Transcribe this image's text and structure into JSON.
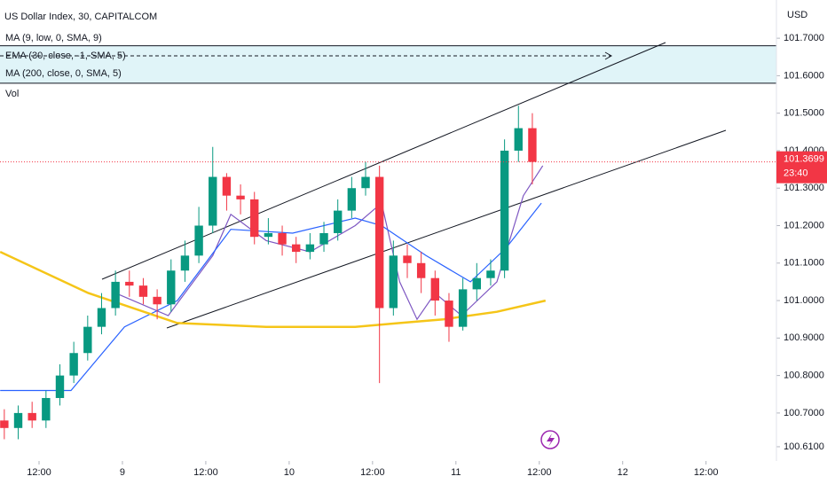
{
  "chart_data": {
    "type": "candlestick",
    "title": "US Dollar Index, 30, CAPITALCOM",
    "currency": "USD",
    "volume_label": "Vol",
    "up_color": "#089981",
    "down_color": "#f23645",
    "x": [
      7,
      9,
      11,
      13,
      15,
      17,
      19,
      21,
      23,
      25,
      27,
      29,
      31,
      33,
      35,
      37,
      39,
      41,
      43,
      45,
      47,
      49,
      51,
      53,
      55,
      57,
      59,
      61,
      63,
      65,
      67,
      69,
      71,
      73,
      75,
      77,
      79,
      81,
      83
    ],
    "open": [
      100.68,
      100.66,
      100.7,
      100.68,
      100.74,
      100.8,
      100.86,
      100.93,
      100.98,
      101.05,
      101.04,
      101.01,
      100.99,
      101.08,
      101.12,
      101.2,
      101.33,
      101.28,
      101.27,
      101.17,
      101.18,
      101.15,
      101.13,
      101.15,
      101.18,
      101.24,
      101.3,
      101.33,
      100.98,
      101.12,
      101.1,
      101.06,
      101.0,
      100.93,
      101.03,
      101.06,
      101.08,
      101.4,
      101.46
    ],
    "high": [
      100.71,
      100.72,
      100.73,
      100.76,
      100.83,
      100.89,
      100.96,
      101.02,
      101.08,
      101.08,
      101.06,
      101.03,
      101.11,
      101.16,
      101.25,
      101.41,
      101.34,
      101.31,
      101.29,
      101.22,
      101.2,
      101.17,
      101.18,
      101.21,
      101.27,
      101.33,
      101.37,
      101.36,
      101.16,
      101.15,
      101.13,
      101.08,
      101.02,
      101.06,
      101.1,
      101.11,
      101.43,
      101.52,
      101.5
    ],
    "low": [
      100.63,
      100.63,
      100.66,
      100.66,
      100.72,
      100.78,
      100.84,
      100.91,
      100.96,
      101.01,
      100.99,
      100.95,
      100.97,
      101.05,
      101.1,
      101.18,
      101.24,
      101.23,
      101.15,
      101.15,
      101.12,
      101.1,
      101.11,
      101.13,
      101.16,
      101.22,
      101.28,
      100.78,
      100.96,
      101.06,
      101.02,
      100.96,
      100.89,
      100.92,
      101.0,
      101.04,
      101.06,
      101.37,
      101.31
    ],
    "close": [
      100.66,
      100.7,
      100.68,
      100.74,
      100.8,
      100.86,
      100.93,
      100.98,
      101.05,
      101.04,
      101.01,
      100.99,
      101.08,
      101.12,
      101.2,
      101.33,
      101.28,
      101.27,
      101.17,
      101.18,
      101.15,
      101.13,
      101.15,
      101.18,
      101.24,
      101.3,
      101.33,
      100.98,
      101.12,
      101.1,
      101.06,
      101.0,
      100.93,
      101.03,
      101.06,
      101.08,
      101.4,
      101.46,
      101.37
    ],
    "overlays": [
      {
        "name": "MA (9, low, 0, SMA, 9)",
        "color": "#7e57c2",
        "x": [
          23,
          30.6,
          37,
          39.6,
          44.7,
          51,
          57.5,
          61.3,
          63.9,
          66.4,
          69,
          72.8,
          77.9,
          81.7,
          84.5
        ],
        "values": [
          101.02,
          100.96,
          101.12,
          101.23,
          101.16,
          101.13,
          101.2,
          101.26,
          101.05,
          100.95,
          101.02,
          100.96,
          101.05,
          101.28,
          101.36
        ]
      },
      {
        "name": "EMA (30, close, -1, SMA, 5)",
        "color": "#2962ff",
        "x": [
          6.4,
          16.6,
          24.3,
          31.9,
          39.6,
          48.5,
          57.5,
          61.3,
          67.7,
          74.1,
          79.2,
          84.3
        ],
        "values": [
          100.76,
          100.76,
          100.93,
          101.0,
          101.19,
          101.18,
          101.22,
          101.2,
          101.12,
          101.05,
          101.14,
          101.26
        ]
      },
      {
        "name": "MA (200, close, 0, SMA, 5)",
        "color": "#f5c518",
        "x": [
          6.4,
          19.1,
          31.9,
          44.7,
          57.5,
          63.9,
          70.2,
          77.9,
          84.9
        ],
        "values": [
          101.13,
          101.02,
          100.94,
          100.93,
          100.93,
          100.94,
          100.95,
          100.97,
          101.0
        ]
      }
    ],
    "levels": [
      101.68,
      101.58
    ],
    "last_price": {
      "value": 101.3699,
      "label": "101.3699"
    },
    "countdown": "23:40",
    "xlim": [
      6.38,
      118.13
    ],
    "ylim": [
      100.572,
      101.802
    ],
    "xticks": [
      {
        "value": 12,
        "label": "12:00"
      },
      {
        "value": 24,
        "label": "9"
      },
      {
        "value": 36,
        "label": "12:00"
      },
      {
        "value": 48,
        "label": "10"
      },
      {
        "value": 60,
        "label": "12:00"
      },
      {
        "value": 72,
        "label": "11"
      },
      {
        "value": 84,
        "label": "12:00"
      },
      {
        "value": 96,
        "label": "12"
      },
      {
        "value": 108,
        "label": "12:00"
      }
    ],
    "yticks": [
      {
        "value": 101.7,
        "label": "101.7000"
      },
      {
        "value": 101.6,
        "label": "101.6000"
      },
      {
        "value": 101.5,
        "label": "101.5000"
      },
      {
        "value": 101.4,
        "label": "101.4000"
      },
      {
        "value": 101.3,
        "label": "101.3000"
      },
      {
        "value": 101.2,
        "label": "101.2000"
      },
      {
        "value": 101.1,
        "label": "101.1000"
      },
      {
        "value": 101.0,
        "label": "101.0000"
      },
      {
        "value": 100.9,
        "label": "100.9000"
      },
      {
        "value": 100.8,
        "label": "100.8000"
      },
      {
        "value": 100.7,
        "label": "100.7000"
      },
      {
        "value": 100.61,
        "label": "100.6100"
      }
    ]
  }
}
